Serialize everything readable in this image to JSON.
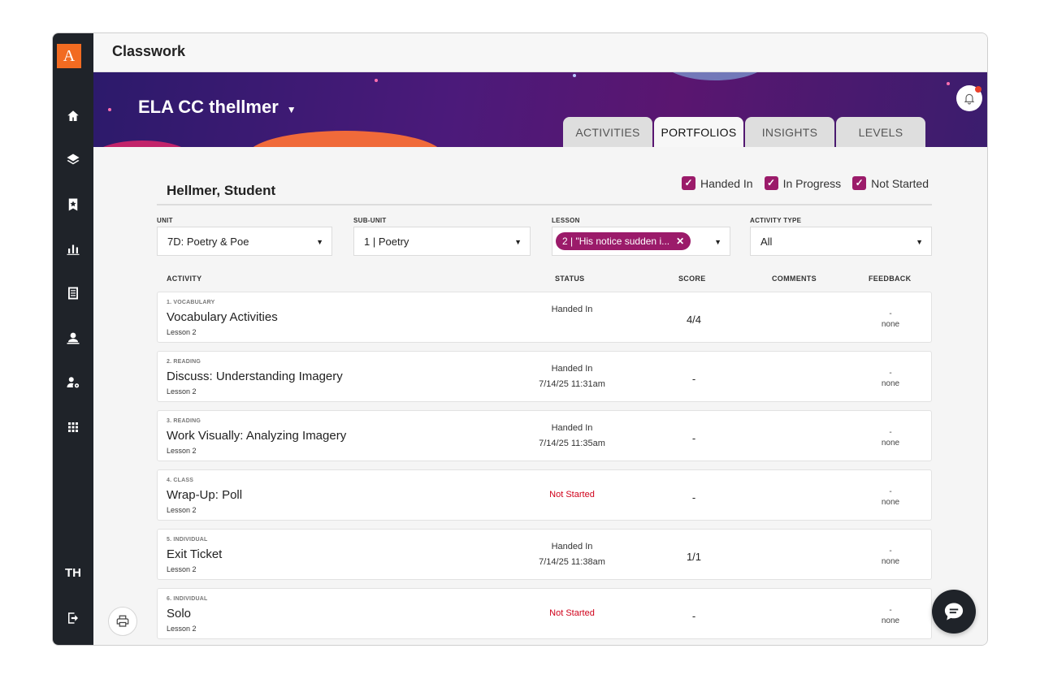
{
  "app": {
    "logo_letter": "A",
    "page_title": "Classwork",
    "user_initials": "TH"
  },
  "sidebar": {
    "items": [
      {
        "icon": "home-icon"
      },
      {
        "icon": "layers-icon"
      },
      {
        "icon": "bookmark-star-icon"
      },
      {
        "icon": "bar-chart-icon"
      },
      {
        "icon": "document-icon"
      },
      {
        "icon": "teacher-icon"
      },
      {
        "icon": "user-settings-icon"
      },
      {
        "icon": "apps-grid-icon"
      },
      {
        "icon": "logout-icon"
      }
    ]
  },
  "banner": {
    "course_name": "ELA CC thellmer"
  },
  "tabs": [
    {
      "label": "ACTIVITIES",
      "active": false
    },
    {
      "label": "PORTFOLIOS",
      "active": true
    },
    {
      "label": "INSIGHTS",
      "active": false
    },
    {
      "label": "LEVELS",
      "active": false
    }
  ],
  "student_name": "Hellmer, Student",
  "status_filters": [
    {
      "label": "Handed In",
      "checked": true
    },
    {
      "label": "In Progress",
      "checked": true
    },
    {
      "label": "Not Started",
      "checked": true
    }
  ],
  "filters": {
    "unit": {
      "label": "UNIT",
      "value": "7D: Poetry & Poe"
    },
    "subunit": {
      "label": "SUB-UNIT",
      "value": "1 | Poetry"
    },
    "lesson": {
      "label": "LESSON",
      "chip": "2 | \"His notice sudden i..."
    },
    "activity_type": {
      "label": "ACTIVITY TYPE",
      "value": "All"
    }
  },
  "columns": {
    "activity": "ACTIVITY",
    "status": "STATUS",
    "score": "SCORE",
    "comments": "COMMENTS",
    "feedback": "FEEDBACK"
  },
  "rows": [
    {
      "category": "1. VOCABULARY",
      "name": "Vocabulary Activities",
      "lesson": "Lesson 2",
      "status": "Handed In",
      "date": "",
      "score": "4/4",
      "feedback_dash": "-",
      "feedback": "none"
    },
    {
      "category": "2. READING",
      "name": "Discuss: Understanding Imagery",
      "lesson": "Lesson 2",
      "status": "Handed In",
      "date": "7/14/25 11:31am",
      "score": "-",
      "feedback_dash": "-",
      "feedback": "none"
    },
    {
      "category": "3. READING",
      "name": "Work Visually: Analyzing Imagery",
      "lesson": "Lesson 2",
      "status": "Handed In",
      "date": "7/14/25 11:35am",
      "score": "-",
      "feedback_dash": "-",
      "feedback": "none"
    },
    {
      "category": "4. CLASS",
      "name": "Wrap-Up: Poll",
      "lesson": "Lesson 2",
      "status": "Not Started",
      "date": "",
      "score": "-",
      "feedback_dash": "-",
      "feedback": "none"
    },
    {
      "category": "5. INDIVIDUAL",
      "name": "Exit Ticket",
      "lesson": "Lesson 2",
      "status": "Handed In",
      "date": "7/14/25 11:38am",
      "score": "1/1",
      "feedback_dash": "-",
      "feedback": "none"
    },
    {
      "category": "6. INDIVIDUAL",
      "name": "Solo",
      "lesson": "Lesson 2",
      "status": "Not Started",
      "date": "",
      "score": "-",
      "feedback_dash": "-",
      "feedback": "none"
    }
  ],
  "colors": {
    "accent": "#9b1b6a",
    "not_started": "#d0021b",
    "sidebar": "#1f2329",
    "logo": "#f26b21"
  }
}
